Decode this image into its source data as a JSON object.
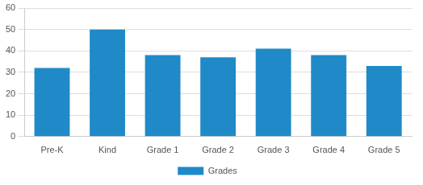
{
  "chart_data": {
    "type": "bar",
    "categories": [
      "Pre-K",
      "Kind",
      "Grade 1",
      "Grade 2",
      "Grade 3",
      "Grade 4",
      "Grade 5"
    ],
    "series": [
      {
        "name": "Grades",
        "color": "#1f8ac7",
        "values": [
          32,
          50,
          38,
          37,
          41,
          38,
          33
        ]
      }
    ],
    "ylim": [
      0,
      60
    ],
    "yticks": [
      0,
      10,
      20,
      30,
      40,
      50,
      60
    ],
    "grid": true,
    "legend": "bottom"
  }
}
